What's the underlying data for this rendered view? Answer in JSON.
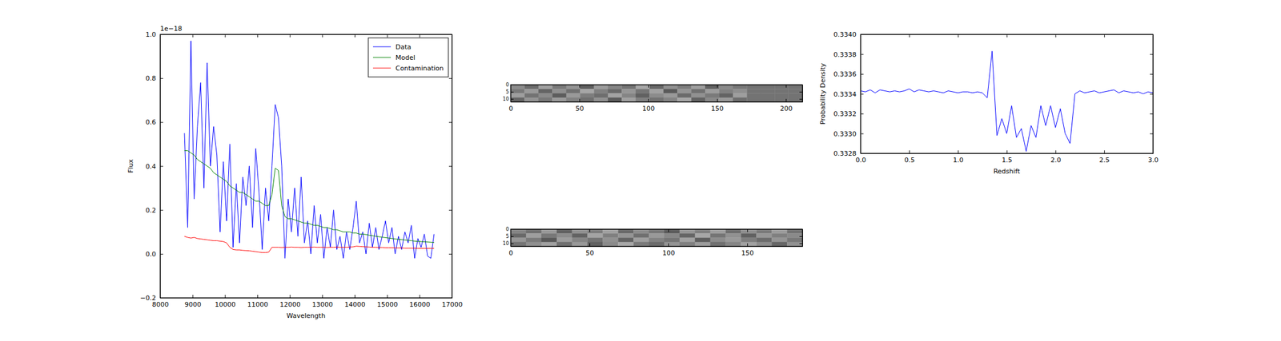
{
  "chart_data": [
    {
      "type": "line",
      "x_label": "Wavelength",
      "y_label": "Flux",
      "annotations": [
        "1e−18"
      ],
      "legend": "upper right",
      "xlim": [
        8000,
        17000
      ],
      "xticks": [
        8000,
        9000,
        10000,
        11000,
        12000,
        13000,
        14000,
        15000,
        16000,
        17000
      ],
      "ylim": [
        -0.2,
        1.0
      ],
      "yticks": [
        {
          "value": -0.2,
          "label": "−0.2"
        },
        {
          "value": 0.0,
          "label": "0.0"
        },
        {
          "value": 0.2,
          "label": "0.2"
        },
        {
          "value": 0.4,
          "label": "0.4"
        },
        {
          "value": 0.6,
          "label": "0.6"
        },
        {
          "value": 0.8,
          "label": "0.8"
        },
        {
          "value": 1.0,
          "label": "1.0"
        }
      ],
      "x": [
        8750,
        8850,
        8950,
        9050,
        9150,
        9250,
        9350,
        9450,
        9550,
        9650,
        9750,
        9850,
        9950,
        10050,
        10150,
        10250,
        10350,
        10450,
        10550,
        10650,
        10750,
        10850,
        10950,
        11050,
        11150,
        11250,
        11350,
        11450,
        11550,
        11650,
        11750,
        11850,
        11950,
        12050,
        12150,
        12250,
        12350,
        12450,
        12550,
        12650,
        12750,
        12850,
        12950,
        13050,
        13150,
        13250,
        13350,
        13450,
        13550,
        13650,
        13750,
        13850,
        13950,
        14050,
        14150,
        14250,
        14350,
        14450,
        14550,
        14650,
        14750,
        14850,
        14950,
        15050,
        15150,
        15250,
        15350,
        15450,
        15550,
        15650,
        15750,
        15850,
        15950,
        16050,
        16150,
        16250,
        16350,
        16450
      ],
      "series": [
        {
          "name": "Data",
          "color": "#0000ff",
          "values": [
            0.55,
            0.12,
            0.97,
            0.25,
            0.58,
            0.78,
            0.3,
            0.87,
            0.4,
            0.58,
            0.45,
            0.1,
            0.42,
            0.15,
            0.5,
            0.03,
            0.32,
            0.05,
            0.35,
            0.22,
            0.4,
            0.12,
            0.48,
            0.28,
            0.02,
            0.3,
            0.15,
            0.4,
            0.68,
            0.62,
            0.4,
            -0.02,
            0.25,
            0.1,
            0.3,
            0.08,
            0.35,
            0.05,
            0.15,
            0.0,
            0.22,
            0.05,
            0.18,
            -0.02,
            0.12,
            0.03,
            0.2,
            0.02,
            0.08,
            -0.02,
            0.1,
            0.02,
            0.12,
            0.24,
            0.05,
            0.1,
            0.0,
            0.14,
            0.03,
            0.12,
            0.02,
            0.08,
            0.15,
            0.05,
            0.12,
            0.0,
            0.08,
            0.02,
            0.1,
            0.05,
            0.13,
            -0.02,
            0.07,
            0.03,
            0.09,
            -0.01,
            -0.02,
            0.09
          ]
        },
        {
          "name": "Model",
          "color": "#008000",
          "values": [
            0.47,
            0.47,
            0.46,
            0.45,
            0.43,
            0.42,
            0.41,
            0.4,
            0.39,
            0.37,
            0.36,
            0.35,
            0.34,
            0.33,
            0.31,
            0.3,
            0.29,
            0.28,
            0.28,
            0.27,
            0.26,
            0.25,
            0.24,
            0.24,
            0.23,
            0.22,
            0.22,
            0.27,
            0.39,
            0.38,
            0.22,
            0.17,
            0.16,
            0.16,
            0.155,
            0.15,
            0.145,
            0.14,
            0.14,
            0.135,
            0.13,
            0.13,
            0.125,
            0.12,
            0.12,
            0.115,
            0.11,
            0.11,
            0.105,
            0.1,
            0.1,
            0.1,
            0.095,
            0.095,
            0.09,
            0.09,
            0.088,
            0.085,
            0.083,
            0.08,
            0.078,
            0.076,
            0.074,
            0.072,
            0.07,
            0.068,
            0.066,
            0.065,
            0.063,
            0.062,
            0.06,
            0.058,
            0.057,
            0.056,
            0.055,
            0.054,
            0.053,
            0.052
          ]
        },
        {
          "name": "Contamination",
          "color": "#ff0000",
          "values": [
            0.08,
            0.075,
            0.072,
            0.075,
            0.07,
            0.068,
            0.066,
            0.064,
            0.062,
            0.06,
            0.06,
            0.058,
            0.056,
            0.05,
            0.03,
            0.02,
            0.018,
            0.018,
            0.016,
            0.015,
            0.014,
            0.012,
            0.01,
            0.008,
            0.006,
            0.006,
            0.008,
            0.03,
            0.03,
            0.03,
            0.029,
            0.03,
            0.03,
            0.031,
            0.03,
            0.03,
            0.029,
            0.03,
            0.03,
            0.03,
            0.031,
            0.03,
            0.03,
            0.03,
            0.029,
            0.03,
            0.03,
            0.031,
            0.03,
            0.03,
            0.03,
            0.031,
            0.032,
            0.035,
            0.034,
            0.033,
            0.032,
            0.031,
            0.03,
            0.03,
            0.029,
            0.029,
            0.028,
            0.028,
            0.028,
            0.027,
            0.027,
            0.027,
            0.026,
            0.026,
            0.026,
            0.026,
            0.025,
            0.025,
            0.025,
            0.025,
            0.025,
            0.025
          ]
        }
      ]
    },
    {
      "type": "heatmap",
      "xlim": [
        0,
        212
      ],
      "xticks": [
        0,
        50,
        100,
        150,
        200
      ],
      "ylim": [
        0,
        12
      ],
      "yticks": [
        0,
        5,
        10
      ],
      "zlim": [
        0,
        1
      ],
      "cells": [
        [
          0.55,
          0.42,
          0.63,
          0.48,
          0.58,
          0.37,
          0.61,
          0.52,
          0.45,
          0.66,
          0.4,
          0.57,
          0.49,
          0.62,
          0.38,
          0.54,
          0.47,
          0.45,
          0.45,
          0.45,
          0.45
        ],
        [
          0.47,
          0.6,
          0.39,
          0.56,
          0.44,
          0.65,
          0.5,
          0.41,
          0.59,
          0.46,
          0.63,
          0.35,
          0.58,
          0.44,
          0.61,
          0.5,
          0.56,
          0.45,
          0.45,
          0.45,
          0.45
        ],
        [
          0.62,
          0.45,
          0.54,
          0.36,
          0.6,
          0.49,
          0.43,
          0.64,
          0.52,
          0.38,
          0.55,
          0.6,
          0.42,
          0.57,
          0.48,
          0.39,
          0.62,
          0.45,
          0.45,
          0.45,
          0.45
        ],
        [
          0.4,
          0.58,
          0.47,
          0.61,
          0.51,
          0.44,
          0.57,
          0.36,
          0.63,
          0.5,
          0.45,
          0.52,
          0.66,
          0.39,
          0.54,
          0.6,
          0.43,
          0.45,
          0.45,
          0.45,
          0.45
        ]
      ]
    },
    {
      "type": "heatmap",
      "xlim": [
        0,
        185
      ],
      "xticks": [
        0,
        50,
        100,
        150
      ],
      "ylim": [
        0,
        12
      ],
      "yticks": [
        0,
        5,
        10
      ],
      "zlim": [
        0,
        1
      ],
      "cells": [
        [
          0.52,
          0.44,
          0.6,
          0.38,
          0.57,
          0.49,
          0.63,
          0.41,
          0.55,
          0.47,
          0.36,
          0.59,
          0.5,
          0.62,
          0.43,
          0.56,
          0.48,
          0.61,
          0.45
        ],
        [
          0.41,
          0.62,
          0.47,
          0.55,
          0.39,
          0.64,
          0.5,
          0.58,
          0.44,
          0.6,
          0.53,
          0.4,
          0.65,
          0.46,
          0.57,
          0.38,
          0.59,
          0.5,
          0.54
        ],
        [
          0.59,
          0.48,
          0.35,
          0.61,
          0.52,
          0.45,
          0.57,
          0.39,
          0.62,
          0.51,
          0.46,
          0.63,
          0.37,
          0.55,
          0.6,
          0.49,
          0.42,
          0.58,
          0.47
        ],
        [
          0.46,
          0.56,
          0.63,
          0.44,
          0.6,
          0.38,
          0.54,
          0.66,
          0.48,
          0.42,
          0.58,
          0.5,
          0.61,
          0.44,
          0.52,
          0.63,
          0.55,
          0.4,
          0.57
        ]
      ]
    },
    {
      "type": "line",
      "x_label": "Redshift",
      "y_label": "Probability Density",
      "xlim": [
        0,
        3
      ],
      "xticks": [
        {
          "value": 0,
          "label": "0.0"
        },
        {
          "value": 0.5,
          "label": "0.5"
        },
        {
          "value": 1,
          "label": "1.0"
        },
        {
          "value": 1.5,
          "label": "1.5"
        },
        {
          "value": 2,
          "label": "2.0"
        },
        {
          "value": 2.5,
          "label": "2.5"
        },
        {
          "value": 3,
          "label": "3.0"
        }
      ],
      "ylim": [
        0.3328,
        0.334
      ],
      "yticks": [
        {
          "value": 0.3328,
          "label": "0.3328"
        },
        {
          "value": 0.333,
          "label": "0.3330"
        },
        {
          "value": 0.3332,
          "label": "0.3332"
        },
        {
          "value": 0.3334,
          "label": "0.3334"
        },
        {
          "value": 0.3336,
          "label": "0.3336"
        },
        {
          "value": 0.3338,
          "label": "0.3338"
        },
        {
          "value": 0.334,
          "label": "0.3340"
        }
      ],
      "x": [
        0,
        0.05,
        0.1,
        0.15,
        0.2,
        0.25,
        0.3,
        0.35,
        0.4,
        0.45,
        0.5,
        0.55,
        0.6,
        0.65,
        0.7,
        0.75,
        0.8,
        0.85,
        0.9,
        0.95,
        1.0,
        1.05,
        1.1,
        1.15,
        1.2,
        1.25,
        1.3,
        1.35,
        1.4,
        1.45,
        1.5,
        1.55,
        1.6,
        1.65,
        1.7,
        1.75,
        1.8,
        1.85,
        1.9,
        1.95,
        2.0,
        2.05,
        2.1,
        2.15,
        2.2,
        2.25,
        2.3,
        2.35,
        2.4,
        2.45,
        2.5,
        2.55,
        2.6,
        2.65,
        2.7,
        2.75,
        2.8,
        2.85,
        2.9,
        2.95,
        3.0
      ],
      "series": [
        {
          "color": "#0000ff",
          "values": [
            0.33343,
            0.33342,
            0.33344,
            0.33341,
            0.33344,
            0.33343,
            0.33342,
            0.33343,
            0.33342,
            0.33343,
            0.33345,
            0.33342,
            0.33344,
            0.33343,
            0.33342,
            0.33343,
            0.33342,
            0.33341,
            0.33343,
            0.33342,
            0.33341,
            0.33342,
            0.33342,
            0.33341,
            0.33342,
            0.33341,
            0.33336,
            0.33383,
            0.33298,
            0.33315,
            0.333,
            0.33328,
            0.33296,
            0.33305,
            0.33282,
            0.33308,
            0.33296,
            0.33328,
            0.33308,
            0.33328,
            0.33306,
            0.33325,
            0.333,
            0.3329,
            0.3334,
            0.33343,
            0.33341,
            0.33342,
            0.33343,
            0.33341,
            0.33342,
            0.33343,
            0.33344,
            0.33341,
            0.33343,
            0.33342,
            0.33341,
            0.33342,
            0.3334,
            0.33342,
            0.33341
          ]
        }
      ]
    }
  ]
}
